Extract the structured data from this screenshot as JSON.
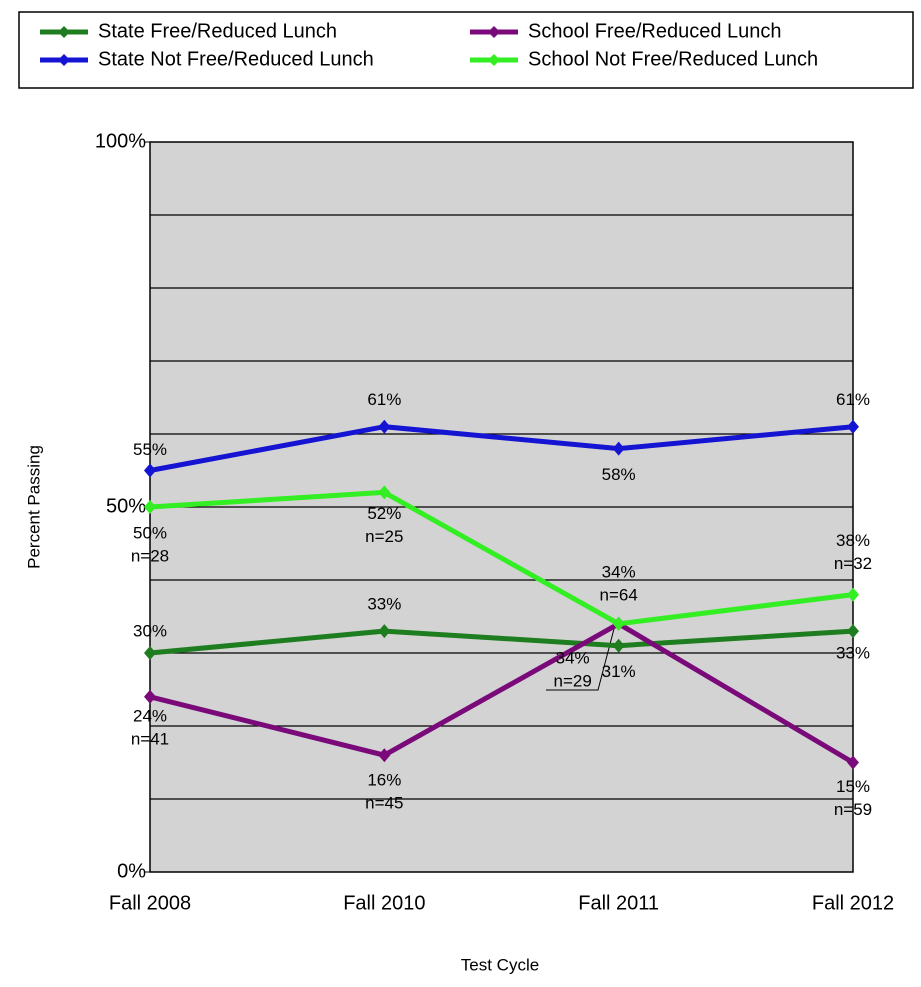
{
  "chart_data": {
    "type": "line",
    "categories": [
      "Fall 2008",
      "Fall 2010",
      "Fall 2011",
      "Fall 2012"
    ],
    "ylim": [
      0,
      100
    ],
    "yticks": [
      {
        "value": 0,
        "label": "0%"
      },
      {
        "value": 50,
        "label": "50%"
      },
      {
        "value": 100,
        "label": "100%"
      }
    ],
    "ygrid": [
      10,
      20,
      30,
      40,
      50,
      60,
      70,
      80,
      90
    ],
    "y_label": "Percent Passing",
    "x_label": "Test Cycle",
    "legend": "top",
    "series": [
      {
        "name": "State Free/Reduced Lunch",
        "color": "#1e7d1e",
        "values": [
          30,
          33,
          31,
          33
        ],
        "value_labels": [
          "30%",
          "33%",
          "31%",
          "33%"
        ]
      },
      {
        "name": "State Not Free/Reduced Lunch",
        "color": "#1414d2",
        "values": [
          55,
          61,
          58,
          61
        ],
        "value_labels": [
          "55%",
          "61%",
          "58%",
          "61%"
        ]
      },
      {
        "name": "School Free/Reduced Lunch",
        "color": "#7a0a7a",
        "values": [
          24,
          16,
          34,
          15
        ],
        "value_labels": [
          "24%",
          "16%",
          "34%",
          "15%"
        ],
        "n_labels": [
          "n=41",
          "n=45",
          "n=29",
          "n=59"
        ]
      },
      {
        "name": "School Not Free/Reduced Lunch",
        "color": "#33ee22",
        "values": [
          50,
          52,
          34,
          38
        ],
        "value_labels": [
          "50%",
          "52%",
          "34%",
          "38%"
        ],
        "n_labels": [
          "n=28",
          "n=25",
          "n=64",
          "n=32"
        ]
      }
    ]
  }
}
